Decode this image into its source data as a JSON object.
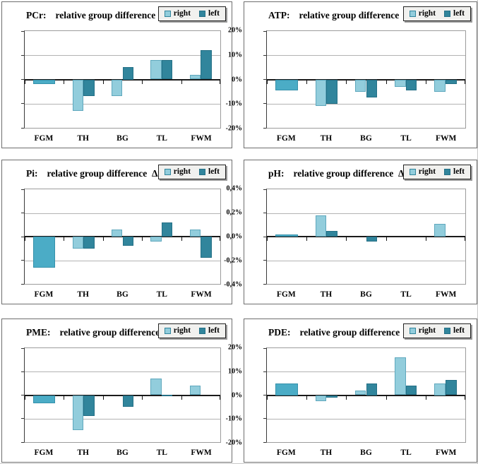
{
  "page": {
    "background": "#ffffff"
  },
  "legend": {
    "right_label": "right",
    "left_label": "left"
  },
  "colors": {
    "right_fill": "#92CDDC",
    "right_border": "#5FA8BD",
    "left_fill": "#31859C",
    "left_border": "#247086",
    "merged_fill": "#4BACC6",
    "merged_border": "#3691AB",
    "zero_axis": "#1a1a1a",
    "gridline": "#b3b3b3",
    "plot_border": "#9c9c9c",
    "panel_border": "#6e6e6e",
    "legend_bg": "#f1f1ef"
  },
  "chart_data": [
    {
      "type": "bar",
      "id": "PCr",
      "title_prefix": "PCr:",
      "title": "relative group difference  Δmf",
      "categories": [
        "FGM",
        "TH",
        "BG",
        "TL",
        "FWM"
      ],
      "series": [
        {
          "name": "right",
          "values": [
            -2,
            -13,
            -7,
            8,
            2
          ]
        },
        {
          "name": "left",
          "values": [
            -2,
            -7,
            5,
            8,
            12
          ]
        }
      ],
      "ylim": [
        -20,
        20
      ],
      "yticks": [
        "20%",
        "10%",
        "0%",
        "-10%",
        "-20%"
      ],
      "merged_groups": [
        0
      ],
      "legend_position": "top-right",
      "grid": true
    },
    {
      "type": "bar",
      "id": "ATP",
      "title_prefix": "ATP:",
      "title": "relative group difference  Δmf",
      "categories": [
        "FGM",
        "TH",
        "BG",
        "TL",
        "FWM"
      ],
      "series": [
        {
          "name": "right",
          "values": [
            -4.5,
            -11,
            -5,
            -3,
            -5
          ]
        },
        {
          "name": "left",
          "values": [
            -4.5,
            -10,
            -7.5,
            -4.5,
            -2
          ]
        }
      ],
      "ylim": [
        -20,
        20
      ],
      "yticks": [
        "20%",
        "10%",
        "0%",
        "-10%",
        "-20%"
      ],
      "merged_groups": [
        0
      ],
      "legend_position": "top-right",
      "grid": true
    },
    {
      "type": "bar",
      "id": "Pi",
      "title_prefix": "Pi:",
      "title": "relative group difference  Δmf",
      "categories": [
        "FGM",
        "TH",
        "BG",
        "TL",
        "FWM"
      ],
      "series": [
        {
          "name": "right",
          "values": [
            -13,
            -5,
            3,
            -2,
            3
          ]
        },
        {
          "name": "left",
          "values": [
            -13,
            -5,
            -4,
            6,
            -9
          ]
        }
      ],
      "ylim": [
        -20,
        20
      ],
      "yticks": [
        "20%",
        "10%",
        "0%",
        "-10%",
        "-20%"
      ],
      "merged_groups": [
        0
      ],
      "legend_position": "top-right",
      "grid": true
    },
    {
      "type": "bar",
      "id": "pH",
      "title_prefix": "pH:",
      "title": "relative group difference  Δmf",
      "categories": [
        "FGM",
        "TH",
        "BG",
        "TL",
        "FWM"
      ],
      "series": [
        {
          "name": "right",
          "values": [
            0.015,
            0.18,
            0,
            0,
            0.11
          ]
        },
        {
          "name": "left",
          "values": [
            0.015,
            0.05,
            -0.04,
            0,
            0
          ]
        }
      ],
      "ylim": [
        -0.4,
        0.4
      ],
      "yticks": [
        "0,4%",
        "0,2%",
        "0,0%",
        "-0,2%",
        "-0,4%"
      ],
      "merged_groups": [
        0
      ],
      "legend_position": "top-right",
      "grid": true
    },
    {
      "type": "bar",
      "id": "PME",
      "title_prefix": "PME:",
      "title": "relative group difference  Δmf",
      "categories": [
        "FGM",
        "TH",
        "BG",
        "TL",
        "FWM"
      ],
      "series": [
        {
          "name": "right",
          "values": [
            -3.5,
            -15,
            0,
            7,
            4
          ]
        },
        {
          "name": "left",
          "values": [
            -3.5,
            -9,
            -5,
            0.3,
            0
          ]
        }
      ],
      "ylim": [
        -20,
        20
      ],
      "yticks": [
        "20%",
        "10%",
        "0%",
        "-10%",
        "-20%"
      ],
      "merged_groups": [
        0
      ],
      "legend_position": "top-right",
      "grid": true
    },
    {
      "type": "bar",
      "id": "PDE",
      "title_prefix": "PDE:",
      "title": "relative group difference  Δmf",
      "categories": [
        "FGM",
        "TH",
        "BG",
        "TL",
        "FWM"
      ],
      "series": [
        {
          "name": "right",
          "values": [
            5,
            -2.5,
            2,
            16,
            5
          ]
        },
        {
          "name": "left",
          "values": [
            5,
            -1,
            5,
            4,
            6.5
          ]
        }
      ],
      "ylim": [
        -20,
        20
      ],
      "yticks": [
        "20%",
        "10%",
        "0%",
        "-10%",
        "-20%"
      ],
      "merged_groups": [
        0
      ],
      "legend_position": "top-right",
      "grid": true
    }
  ]
}
